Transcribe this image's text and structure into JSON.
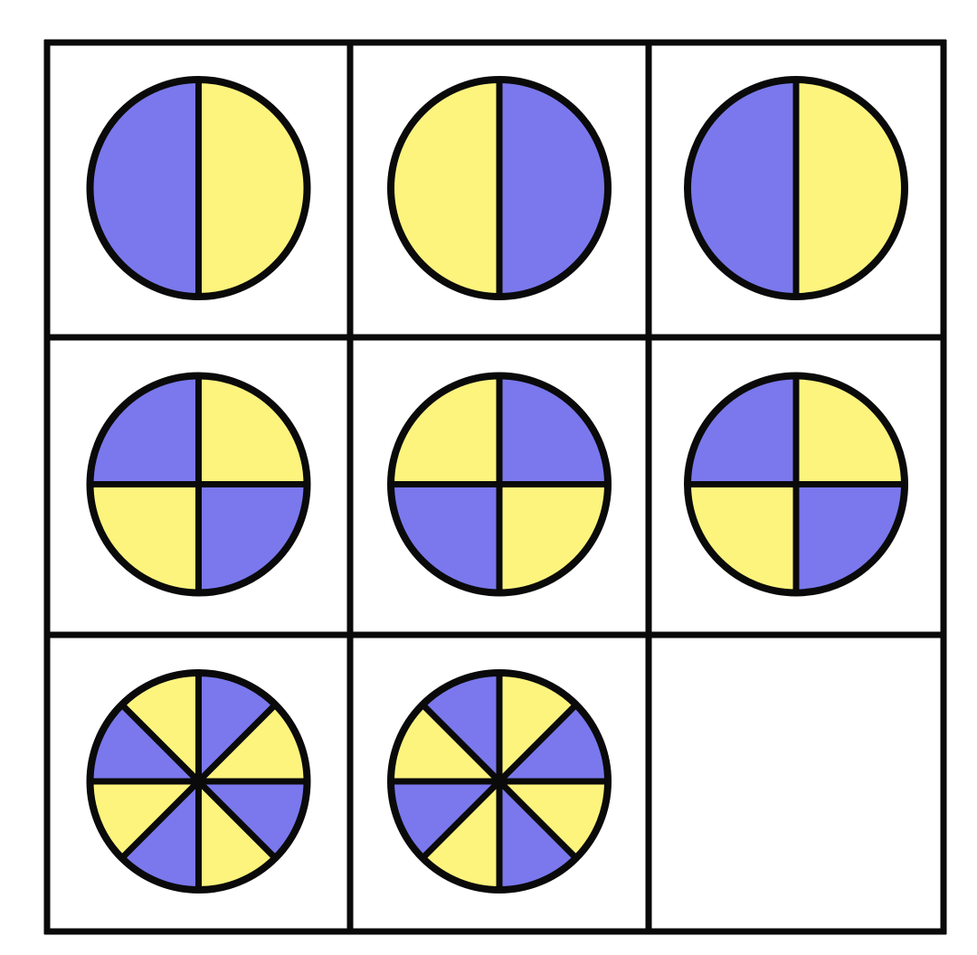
{
  "colors": {
    "yellow": "#FDF47E",
    "blue": "#7A78EC",
    "outline": "#0a0a0a",
    "background": "#ffffff"
  },
  "grid": {
    "rows": 3,
    "cols": 3
  },
  "cells": [
    {
      "row": 0,
      "col": 0,
      "segments": 2,
      "first_color": "yellow"
    },
    {
      "row": 0,
      "col": 1,
      "segments": 2,
      "first_color": "blue"
    },
    {
      "row": 0,
      "col": 2,
      "segments": 2,
      "first_color": "yellow"
    },
    {
      "row": 1,
      "col": 0,
      "segments": 4,
      "first_color": "yellow"
    },
    {
      "row": 1,
      "col": 1,
      "segments": 4,
      "first_color": "blue"
    },
    {
      "row": 1,
      "col": 2,
      "segments": 4,
      "first_color": "yellow"
    },
    {
      "row": 2,
      "col": 0,
      "segments": 8,
      "first_color": "blue"
    },
    {
      "row": 2,
      "col": 1,
      "segments": 8,
      "first_color": "yellow"
    },
    {
      "row": 2,
      "col": 2,
      "segments": 0,
      "first_color": "",
      "empty": true
    }
  ]
}
